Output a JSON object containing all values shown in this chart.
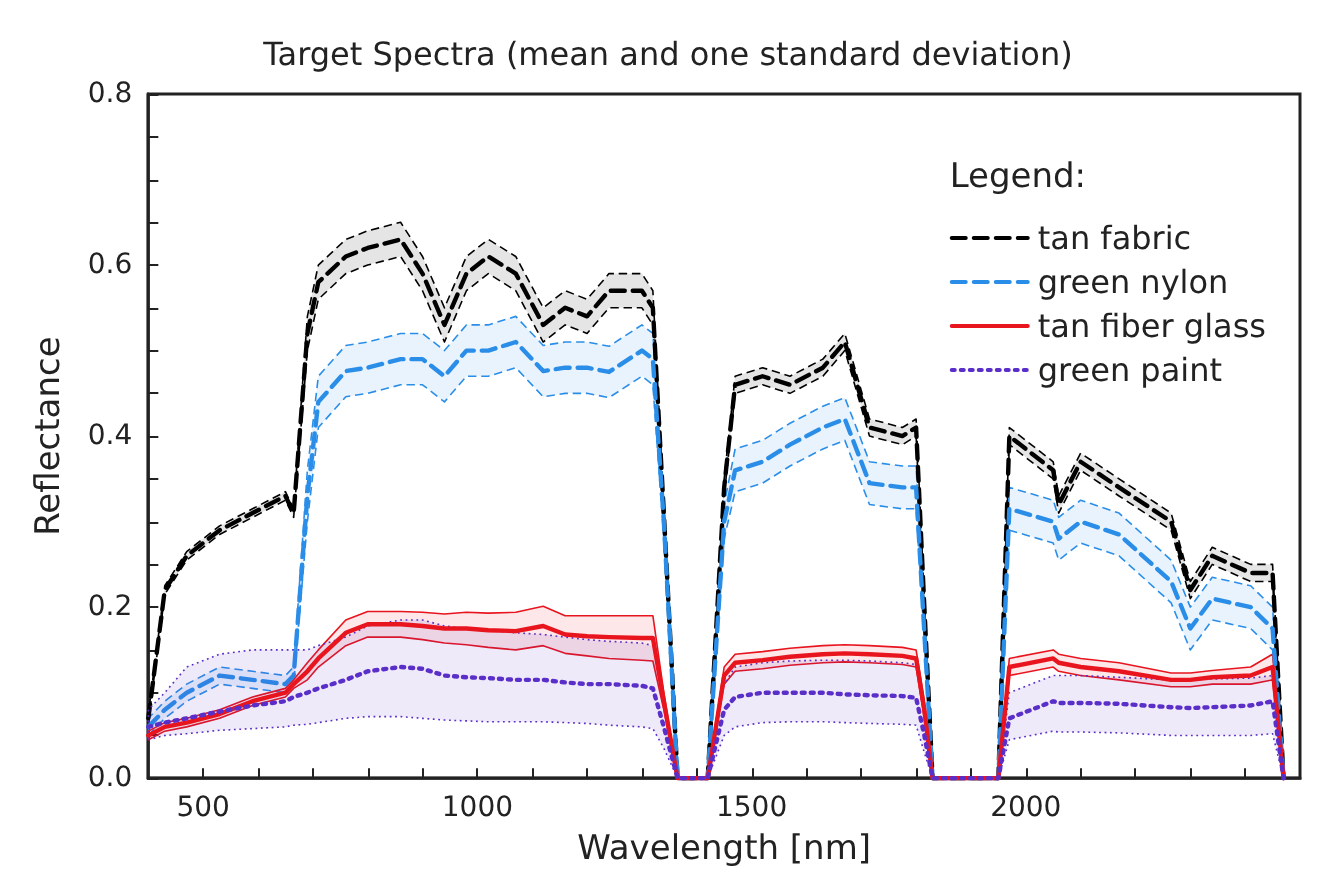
{
  "chart_data": {
    "type": "line",
    "title": "Target Spectra (mean and one standard deviation)",
    "xlabel": "Wavelength [nm]",
    "ylabel": "Reflectance",
    "legend_title": "Legend:",
    "legend": "top right",
    "grid": false,
    "xlim": [
      400,
      2500
    ],
    "ylim": [
      0,
      0.8
    ],
    "xticks": [
      500,
      {
        "value": 600,
        "label": null
      },
      {
        "value": 700,
        "label": null
      },
      {
        "value": 800,
        "label": null
      },
      {
        "value": 900,
        "label": null
      },
      1000,
      {
        "value": 1100,
        "label": null
      },
      {
        "value": 1200,
        "label": null
      },
      {
        "value": 1300,
        "label": null
      },
      {
        "value": 1400,
        "label": null
      },
      1500,
      {
        "value": 1600,
        "label": null
      },
      {
        "value": 1700,
        "label": null
      },
      {
        "value": 1800,
        "label": null
      },
      {
        "value": 1900,
        "label": null
      },
      2000,
      {
        "value": 2100,
        "label": null
      },
      {
        "value": 2200,
        "label": null
      },
      {
        "value": 2300,
        "label": null
      },
      {
        "value": 2400,
        "label": null
      }
    ],
    "yticks": [
      {
        "value": 0,
        "label": "0.0"
      },
      {
        "value": 0.05,
        "label": null
      },
      {
        "value": 0.1,
        "label": null
      },
      {
        "value": 0.15,
        "label": null
      },
      {
        "value": 0.2,
        "label": "0.2"
      },
      {
        "value": 0.25,
        "label": null
      },
      {
        "value": 0.3,
        "label": null
      },
      {
        "value": 0.35,
        "label": null
      },
      {
        "value": 0.4,
        "label": "0.4"
      },
      {
        "value": 0.45,
        "label": null
      },
      {
        "value": 0.5,
        "label": null
      },
      {
        "value": 0.55,
        "label": null
      },
      {
        "value": 0.6,
        "label": "0.6"
      },
      {
        "value": 0.65,
        "label": null
      },
      {
        "value": 0.7,
        "label": null
      },
      {
        "value": 0.75,
        "label": null
      },
      {
        "value": 0.8,
        "label": "0.8"
      }
    ],
    "x": [
      400,
      430,
      470,
      530,
      590,
      650,
      665,
      690,
      710,
      760,
      800,
      860,
      900,
      940,
      980,
      1020,
      1070,
      1120,
      1160,
      1200,
      1240,
      1300,
      1320,
      1340,
      1365,
      1420,
      1450,
      1470,
      1520,
      1570,
      1630,
      1670,
      1715,
      1775,
      1800,
      1815,
      1830,
      1950,
      1970,
      2050,
      2060,
      2100,
      2170,
      2265,
      2300,
      2340,
      2410,
      2450,
      2470
    ],
    "series": [
      {
        "name": "tan fabric",
        "color": "#000000",
        "line_style": "dashed",
        "values": [
          0.07,
          0.22,
          0.26,
          0.29,
          0.31,
          0.33,
          0.31,
          0.52,
          0.58,
          0.61,
          0.62,
          0.63,
          0.59,
          0.53,
          0.59,
          0.61,
          0.59,
          0.53,
          0.55,
          0.54,
          0.57,
          0.57,
          0.55,
          0.31,
          0,
          0,
          0.34,
          0.46,
          0.47,
          0.46,
          0.48,
          0.51,
          0.41,
          0.4,
          0.41,
          0.2,
          0,
          0,
          0.4,
          0.36,
          0.32,
          0.37,
          0.34,
          0.3,
          0.22,
          0.26,
          0.24,
          0.24,
          0
        ],
        "lower": [
          0.065,
          0.215,
          0.255,
          0.285,
          0.305,
          0.325,
          0.305,
          0.5,
          0.56,
          0.59,
          0.6,
          0.61,
          0.57,
          0.51,
          0.57,
          0.59,
          0.57,
          0.51,
          0.53,
          0.52,
          0.55,
          0.55,
          0.53,
          0.3,
          0,
          0,
          0.33,
          0.45,
          0.46,
          0.45,
          0.47,
          0.5,
          0.4,
          0.39,
          0.4,
          0.19,
          0,
          0,
          0.39,
          0.35,
          0.31,
          0.36,
          0.33,
          0.29,
          0.21,
          0.25,
          0.23,
          0.23,
          0
        ],
        "upper": [
          0.075,
          0.225,
          0.265,
          0.295,
          0.315,
          0.335,
          0.315,
          0.54,
          0.6,
          0.63,
          0.64,
          0.65,
          0.61,
          0.55,
          0.61,
          0.63,
          0.61,
          0.55,
          0.57,
          0.56,
          0.59,
          0.59,
          0.57,
          0.32,
          0,
          0,
          0.35,
          0.47,
          0.48,
          0.47,
          0.49,
          0.52,
          0.42,
          0.41,
          0.42,
          0.21,
          0,
          0,
          0.41,
          0.37,
          0.33,
          0.38,
          0.35,
          0.31,
          0.23,
          0.27,
          0.25,
          0.25,
          0
        ]
      },
      {
        "name": "green nylon",
        "color": "#2a8ee8",
        "line_style": "dashed",
        "values": [
          0.06,
          0.08,
          0.1,
          0.12,
          0.115,
          0.11,
          0.12,
          0.33,
          0.44,
          0.476,
          0.48,
          0.49,
          0.49,
          0.47,
          0.5,
          0.5,
          0.51,
          0.476,
          0.48,
          0.48,
          0.475,
          0.5,
          0.49,
          0.3,
          0,
          0,
          0.3,
          0.36,
          0.37,
          0.39,
          0.41,
          0.42,
          0.345,
          0.34,
          0.34,
          0.17,
          0,
          0,
          0.315,
          0.3,
          0.28,
          0.3,
          0.285,
          0.23,
          0.175,
          0.21,
          0.2,
          0.175,
          0
        ],
        "lower": [
          0.05,
          0.07,
          0.09,
          0.11,
          0.105,
          0.1,
          0.11,
          0.3,
          0.41,
          0.446,
          0.45,
          0.46,
          0.46,
          0.44,
          0.47,
          0.47,
          0.48,
          0.446,
          0.45,
          0.45,
          0.445,
          0.47,
          0.46,
          0.28,
          0,
          0,
          0.28,
          0.335,
          0.345,
          0.365,
          0.385,
          0.395,
          0.32,
          0.315,
          0.315,
          0.16,
          0,
          0,
          0.29,
          0.275,
          0.255,
          0.275,
          0.26,
          0.205,
          0.15,
          0.185,
          0.175,
          0.15,
          0
        ],
        "upper": [
          0.07,
          0.09,
          0.11,
          0.13,
          0.125,
          0.12,
          0.13,
          0.36,
          0.47,
          0.506,
          0.51,
          0.52,
          0.52,
          0.5,
          0.53,
          0.53,
          0.54,
          0.506,
          0.51,
          0.51,
          0.505,
          0.53,
          0.52,
          0.32,
          0,
          0,
          0.32,
          0.385,
          0.395,
          0.415,
          0.435,
          0.445,
          0.37,
          0.365,
          0.365,
          0.18,
          0,
          0,
          0.34,
          0.325,
          0.305,
          0.325,
          0.31,
          0.255,
          0.2,
          0.235,
          0.225,
          0.2,
          0
        ]
      },
      {
        "name": "tan fiber glass",
        "color": "#e8141e",
        "line_style": "solid",
        "values": [
          0.05,
          0.06,
          0.065,
          0.075,
          0.09,
          0.1,
          0.11,
          0.125,
          0.14,
          0.17,
          0.18,
          0.18,
          0.178,
          0.175,
          0.175,
          0.173,
          0.172,
          0.178,
          0.168,
          0.166,
          0.165,
          0.164,
          0.164,
          0.09,
          0,
          0,
          0.12,
          0.135,
          0.138,
          0.142,
          0.145,
          0.146,
          0.145,
          0.143,
          0.14,
          0.08,
          0,
          0,
          0.13,
          0.14,
          0.135,
          0.13,
          0.125,
          0.115,
          0.115,
          0.118,
          0.12,
          0.13,
          0
        ],
        "lower": [
          0.045,
          0.055,
          0.06,
          0.07,
          0.085,
          0.095,
          0.105,
          0.115,
          0.13,
          0.155,
          0.165,
          0.165,
          0.162,
          0.158,
          0.156,
          0.153,
          0.15,
          0.155,
          0.146,
          0.143,
          0.14,
          0.138,
          0.137,
          0.08,
          0,
          0,
          0.11,
          0.125,
          0.128,
          0.132,
          0.135,
          0.136,
          0.135,
          0.133,
          0.13,
          0.07,
          0,
          0,
          0.12,
          0.13,
          0.125,
          0.12,
          0.115,
          0.107,
          0.107,
          0.11,
          0.11,
          0.115,
          0
        ],
        "upper": [
          0.055,
          0.065,
          0.07,
          0.08,
          0.095,
          0.105,
          0.115,
          0.135,
          0.15,
          0.185,
          0.195,
          0.195,
          0.194,
          0.192,
          0.194,
          0.193,
          0.194,
          0.201,
          0.19,
          0.19,
          0.19,
          0.19,
          0.19,
          0.1,
          0,
          0,
          0.13,
          0.145,
          0.148,
          0.152,
          0.155,
          0.156,
          0.155,
          0.153,
          0.15,
          0.09,
          0,
          0,
          0.14,
          0.15,
          0.145,
          0.14,
          0.135,
          0.123,
          0.123,
          0.126,
          0.13,
          0.145,
          0
        ]
      },
      {
        "name": "green paint",
        "color": "#5a2ec8",
        "line_style": "dotted",
        "values": [
          0.06,
          0.065,
          0.07,
          0.078,
          0.085,
          0.09,
          0.095,
          0.1,
          0.105,
          0.115,
          0.125,
          0.13,
          0.128,
          0.12,
          0.118,
          0.117,
          0.115,
          0.115,
          0.112,
          0.11,
          0.11,
          0.108,
          0.105,
          0.06,
          0,
          0,
          0.08,
          0.095,
          0.1,
          0.1,
          0.1,
          0.098,
          0.097,
          0.096,
          0.094,
          0.05,
          0,
          0,
          0.07,
          0.09,
          0.088,
          0.088,
          0.087,
          0.083,
          0.082,
          0.083,
          0.085,
          0.09,
          0
        ],
        "lower": [
          0.045,
          0.05,
          0.052,
          0.056,
          0.058,
          0.06,
          0.062,
          0.063,
          0.065,
          0.07,
          0.072,
          0.072,
          0.07,
          0.068,
          0.067,
          0.066,
          0.066,
          0.066,
          0.065,
          0.064,
          0.062,
          0.06,
          0.058,
          0.035,
          0,
          0,
          0.05,
          0.06,
          0.065,
          0.066,
          0.066,
          0.065,
          0.064,
          0.063,
          0.062,
          0.03,
          0,
          0,
          0.045,
          0.055,
          0.054,
          0.054,
          0.053,
          0.05,
          0.05,
          0.05,
          0.05,
          0.052,
          0
        ],
        "upper": [
          0.08,
          0.1,
          0.13,
          0.145,
          0.15,
          0.15,
          0.15,
          0.15,
          0.155,
          0.165,
          0.178,
          0.185,
          0.185,
          0.178,
          0.175,
          0.173,
          0.17,
          0.168,
          0.165,
          0.162,
          0.16,
          0.158,
          0.155,
          0.09,
          0,
          0,
          0.11,
          0.13,
          0.135,
          0.137,
          0.138,
          0.138,
          0.137,
          0.135,
          0.133,
          0.07,
          0,
          0,
          0.1,
          0.12,
          0.12,
          0.12,
          0.118,
          0.115,
          0.115,
          0.116,
          0.117,
          0.12,
          0
        ]
      }
    ]
  }
}
